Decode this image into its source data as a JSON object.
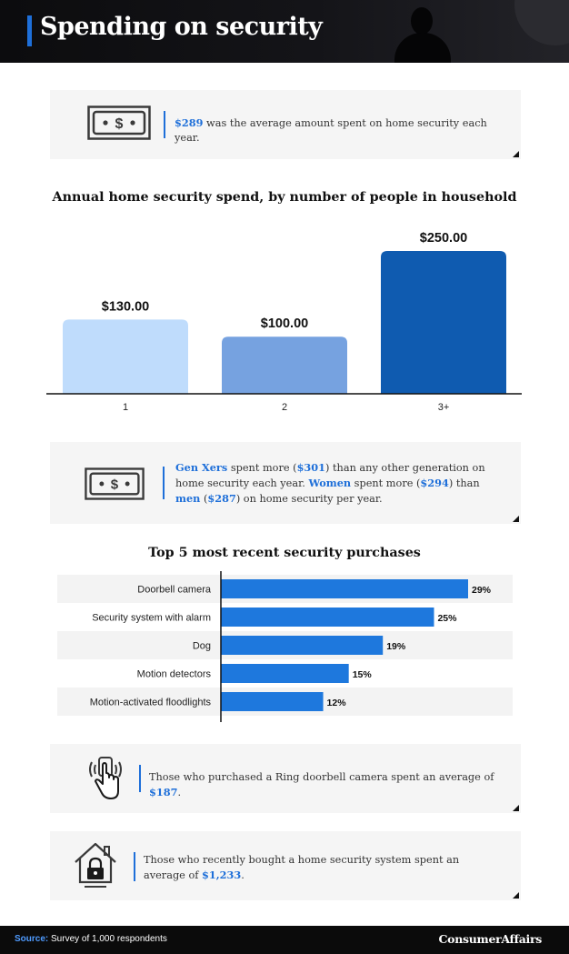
{
  "header": {
    "title": "Spending on security"
  },
  "callout1": {
    "highlight": "$289",
    "text": " was the average amount spent on home security each year."
  },
  "chart1": {
    "title": "Annual home security spend, by number of people in household"
  },
  "callout2": {
    "p1": "Gen Xers",
    "p2": " spent more (",
    "p3": "$301",
    "p4": ") than any other generation on home security each year. ",
    "p5": "Women",
    "p6": " spent more (",
    "p7": "$294",
    "p8": ") than ",
    "p9": "men",
    "p10": " (",
    "p11": "$287",
    "p12": ") on home security per year."
  },
  "chart2": {
    "title": "Top 5 most recent security purchases"
  },
  "callout3": {
    "text": "Those who purchased a Ring doorbell camera spent an average of ",
    "highlight": "$187",
    "suffix": "."
  },
  "callout4": {
    "text": "Those who recently bought a home security system spent an average of ",
    "highlight": "$1,233",
    "suffix": "."
  },
  "footer": {
    "source_label": "Source:",
    "source_text": " Survey of 1,000 respondents",
    "brand": "ConsumerAffairs"
  },
  "icons": {
    "money": "money-bill-icon",
    "tap": "hand-tap-icon",
    "home": "house-lock-icon"
  },
  "colors": {
    "accent": "#1e6fd9",
    "bar_light": "#bfdcfc",
    "bar_mid": "#76a2e0",
    "bar_dark": "#0f5bb0",
    "hbar": "#1e78dd"
  },
  "chart_data": [
    {
      "type": "bar",
      "title": "Annual home security spend, by number of people in household",
      "categories": [
        "1",
        "2",
        "3+"
      ],
      "values": [
        130,
        100,
        250
      ],
      "labels": [
        "$130.00",
        "$100.00",
        "$250.00"
      ],
      "xlabel": "",
      "ylabel": "",
      "ylim": [
        0,
        250
      ]
    },
    {
      "type": "bar",
      "orientation": "horizontal",
      "title": "Top 5 most recent security purchases",
      "categories": [
        "Doorbell camera",
        "Security system with alarm",
        "Dog",
        "Motion detectors",
        "Motion-activated floodlights"
      ],
      "values": [
        29,
        25,
        19,
        15,
        12
      ],
      "labels": [
        "29%",
        "25%",
        "19%",
        "15%",
        "12%"
      ],
      "xlabel": "",
      "ylabel": "",
      "xlim": [
        0,
        29
      ]
    }
  ]
}
